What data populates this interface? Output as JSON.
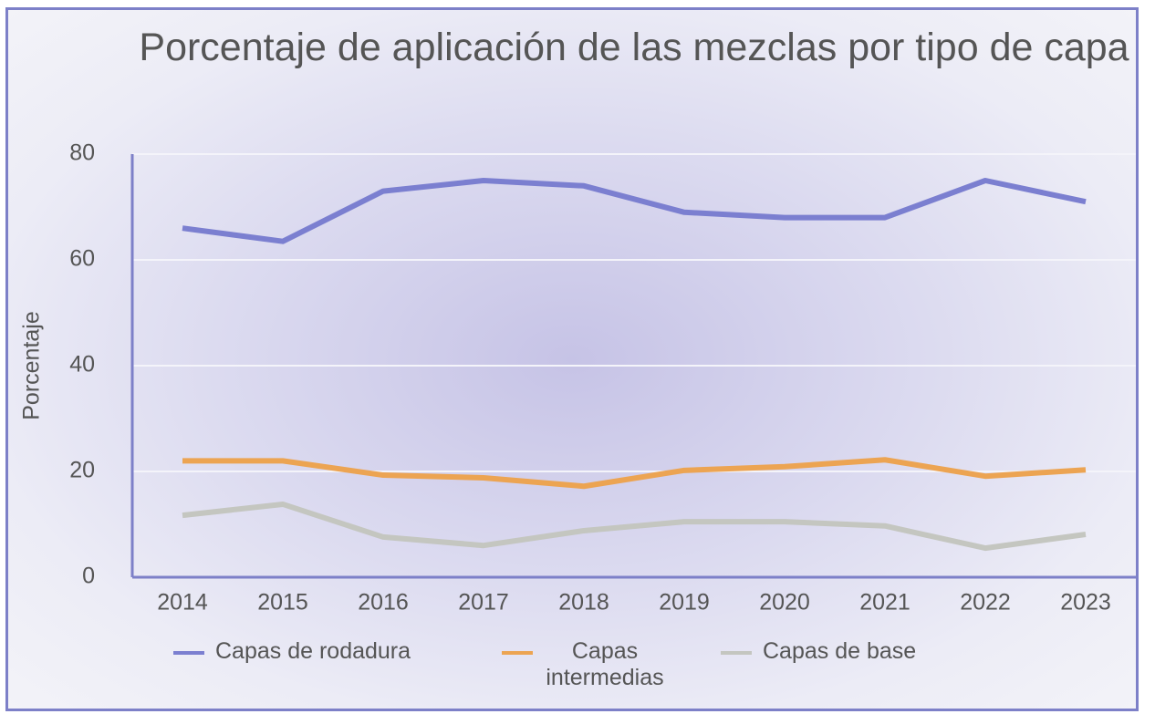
{
  "chart_data": {
    "type": "line",
    "title": "Porcentaje de aplicación de las mezclas por tipo de capa",
    "y_label": "Porcentaje",
    "categories": [
      "2014",
      "2015",
      "2016",
      "2017",
      "2018",
      "2019",
      "2020",
      "2021",
      "2022",
      "2023"
    ],
    "series": [
      {
        "name": "Capas de rodadura",
        "color": "#7b7fd0",
        "values": [
          66,
          63.5,
          73,
          75,
          74,
          69,
          68,
          68,
          75,
          71
        ]
      },
      {
        "name": "Capas intermedias",
        "color": "#eca452",
        "values": [
          22,
          22,
          19.3,
          18.8,
          17.2,
          20.2,
          20.9,
          22.2,
          19.1,
          20.3
        ]
      },
      {
        "name": "Capas de base",
        "color": "#c4c6c0",
        "values": [
          11.7,
          13.8,
          7.6,
          6,
          8.8,
          10.5,
          10.5,
          9.7,
          5.5,
          8.1
        ]
      }
    ],
    "ylim": [
      0,
      80
    ],
    "yticks": [
      0,
      20,
      40,
      60,
      80
    ],
    "grid": true
  }
}
